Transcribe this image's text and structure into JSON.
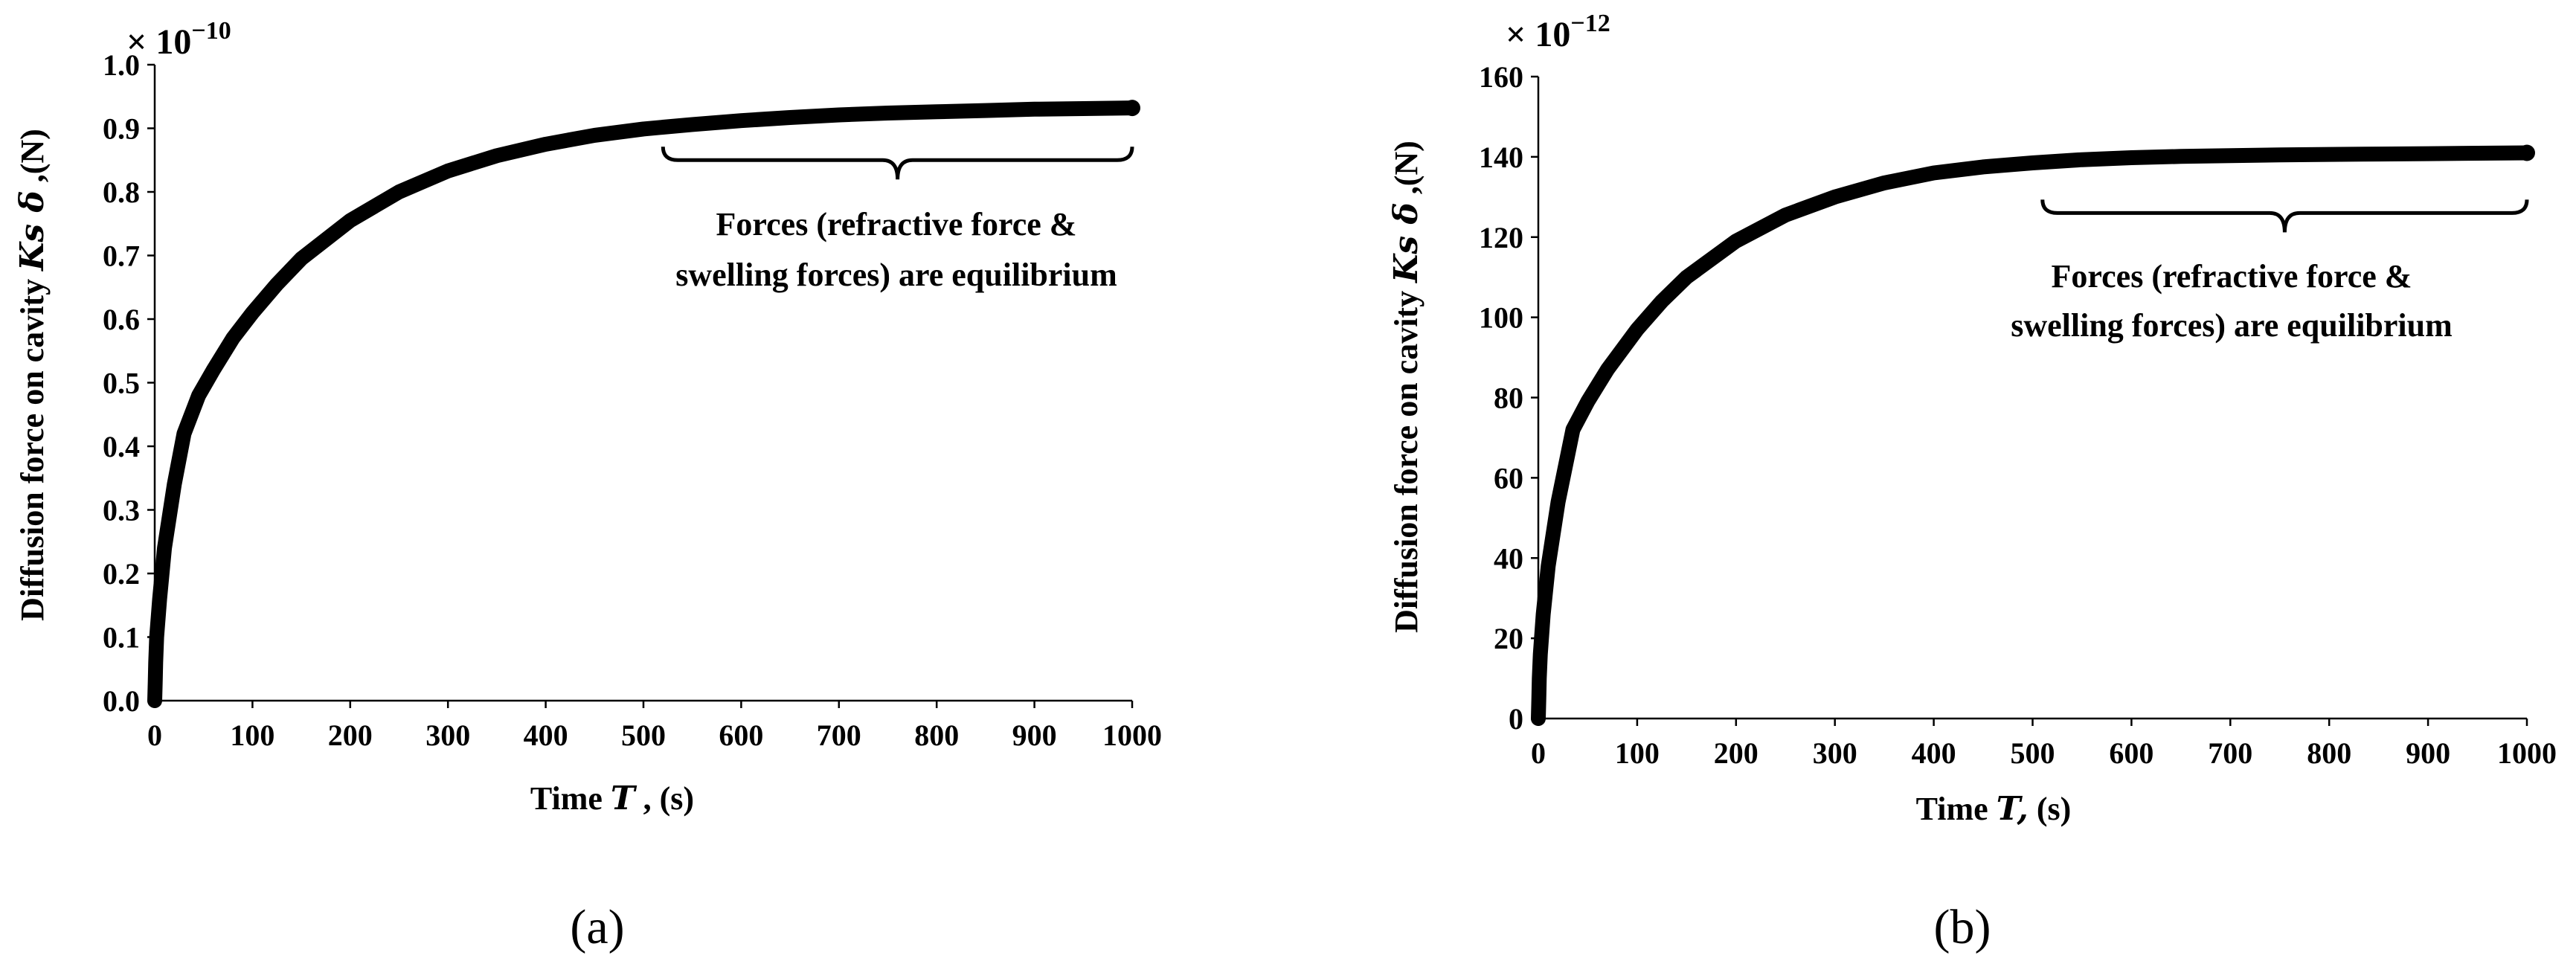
{
  "panels": [
    {
      "caption": "(a)",
      "chart_data": {
        "type": "line",
        "title": "",
        "xlabel_main": "Time ",
        "xlabel_var": "T",
        "xlabel_unit": " , (s)",
        "ylabel_main": "Diffusion force on cavity ",
        "ylabel_var": "Ks δ",
        "ylabel_unit": " ,(N)",
        "y_multiplier": "× 10",
        "y_exponent": "−10",
        "xlim": [
          0,
          1000
        ],
        "ylim": [
          0,
          1.0
        ],
        "xticks": [
          0,
          100,
          200,
          300,
          400,
          500,
          600,
          700,
          800,
          900,
          1000
        ],
        "yticks": [
          0.0,
          0.1,
          0.2,
          0.3,
          0.4,
          0.5,
          0.6,
          0.7,
          0.8,
          0.9,
          1.0
        ],
        "ytick_labels": [
          "0.0",
          "0.1",
          "0.2",
          "0.3",
          "0.4",
          "0.5",
          "0.6",
          "0.7",
          "0.8",
          "0.9",
          "1.0"
        ],
        "series": [
          {
            "name": "Diffusion force",
            "x": [
              0,
              0.5,
              1,
              2,
              5,
              10,
              20,
              30,
              45,
              60,
              80,
              100,
              125,
              150,
              200,
              250,
              300,
              350,
              400,
              450,
              500,
              550,
              600,
              650,
              700,
              750,
              800,
              850,
              900,
              950,
              1000
            ],
            "y": [
              0.0,
              0.03,
              0.06,
              0.1,
              0.16,
              0.24,
              0.34,
              0.42,
              0.48,
              0.52,
              0.57,
              0.61,
              0.655,
              0.695,
              0.755,
              0.8,
              0.833,
              0.857,
              0.875,
              0.889,
              0.899,
              0.906,
              0.912,
              0.917,
              0.921,
              0.924,
              0.926,
              0.928,
              0.93,
              0.931,
              0.932
            ]
          }
        ],
        "annotation": {
          "line1": "Forces (refractive force &",
          "line2": "swelling forces) are equilibrium",
          "brace_x": [
            520,
            1000
          ],
          "brace_y": 0.85
        }
      }
    },
    {
      "caption": "(b)",
      "chart_data": {
        "type": "line",
        "title": "",
        "xlabel_main": "Time ",
        "xlabel_var": "T,",
        "xlabel_unit": " (s)",
        "ylabel_main": "Diffusion force on cavity ",
        "ylabel_var": "Ks δ",
        "ylabel_unit": " ,(N)",
        "y_multiplier": "× 10",
        "y_exponent": "−12",
        "xlim": [
          0,
          1000
        ],
        "ylim": [
          0,
          160
        ],
        "xticks": [
          0,
          100,
          200,
          300,
          400,
          500,
          600,
          700,
          800,
          900,
          1000
        ],
        "yticks": [
          0,
          20,
          40,
          60,
          80,
          100,
          120,
          140,
          160
        ],
        "ytick_labels": [
          "0",
          "20",
          "40",
          "60",
          "80",
          "100",
          "120",
          "140",
          "160"
        ],
        "series": [
          {
            "name": "Diffusion force",
            "x": [
              0,
              0.5,
              1,
              2,
              5,
              10,
              20,
              35,
              50,
              70,
              100,
              125,
              150,
              200,
              250,
              300,
              350,
              400,
              450,
              500,
              550,
              600,
              650,
              700,
              750,
              800,
              850,
              900,
              950,
              1000
            ],
            "y": [
              0,
              5,
              10,
              16,
              26,
              38,
              54,
              72,
              79,
              87,
              97,
              104,
              110,
              119,
              125.5,
              130,
              133.5,
              136,
              137.5,
              138.5,
              139.3,
              139.8,
              140.1,
              140.3,
              140.5,
              140.6,
              140.7,
              140.8,
              140.9,
              141
            ]
          }
        ],
        "annotation": {
          "line1": "Forces (refractive force &",
          "line2": "swelling forces) are equilibrium",
          "brace_x": [
            510,
            1000
          ],
          "brace_y": 126
        }
      }
    }
  ]
}
